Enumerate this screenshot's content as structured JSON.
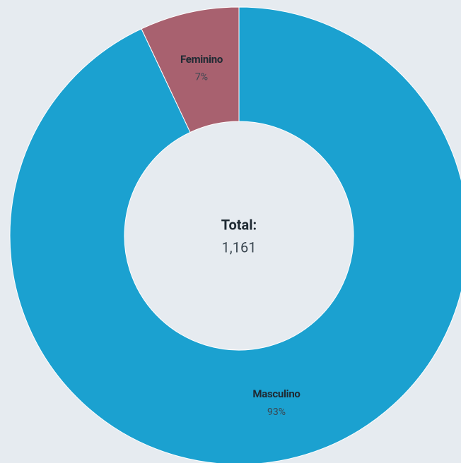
{
  "chart_data": {
    "type": "donut",
    "categories": [
      "Masculino",
      "Feminino"
    ],
    "values": [
      93,
      7
    ],
    "value_labels": [
      "93%",
      "7%"
    ],
    "colors": [
      "#1ba1d0",
      "#a8616f"
    ],
    "center_title": "Total:",
    "center_value": "1,161"
  }
}
